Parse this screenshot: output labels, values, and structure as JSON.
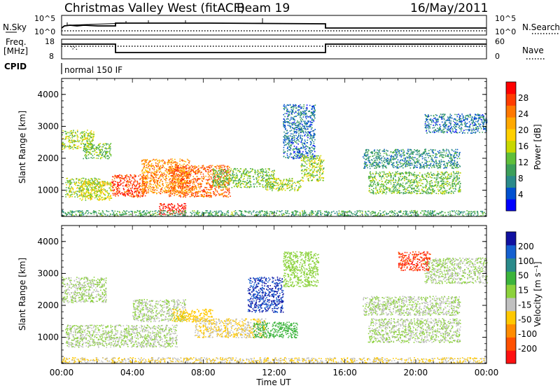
{
  "header": {
    "radar": "Christmas Valley West (fitACF)",
    "beam": "Beam 19",
    "date": "16/May/2011"
  },
  "status_panels": {
    "nsky_label": "N.Sky",
    "nsky_ticks": [
      "10^5",
      "10^0"
    ],
    "nsearch_label": "N.Search",
    "nsearch_ticks": [
      "10^5",
      "10^0"
    ],
    "freq_label_1": "Freq.",
    "freq_label_2": "[MHz]",
    "freq_ticks": [
      "18",
      "8"
    ],
    "nave_label": "Nave",
    "nave_ticks": [
      "60",
      "0"
    ],
    "cpid_label": "CPID",
    "cpid_value": "normal 150 IF"
  },
  "power_colorbar": {
    "label": "Power [dB]",
    "ticks": [
      "28",
      "24",
      "20",
      "16",
      "12",
      "8",
      "4"
    ],
    "colors": [
      "#0000ff",
      "#0050d0",
      "#2a8a8a",
      "#3c9f5a",
      "#5fbf3a",
      "#c8d800",
      "#ffd000",
      "#ffa800",
      "#ff7800",
      "#ff3c00",
      "#ff0000"
    ]
  },
  "velocity_colorbar": {
    "label": "Velocity [m s⁻¹]",
    "ticks": [
      "200",
      "100",
      "50",
      "15",
      "-15",
      "-50",
      "-100",
      "-200"
    ],
    "colors": [
      "#1010a0",
      "#1560d0",
      "#2a8a8a",
      "#3cb43c",
      "#8cd23c",
      "#c0c0c0",
      "#ffc800",
      "#ff8c00",
      "#ff5000",
      "#ff1010"
    ]
  },
  "x_axis": {
    "label": "Time UT",
    "ticks": [
      "00:00",
      "04:00",
      "08:00",
      "12:00",
      "16:00",
      "20:00",
      "00:00"
    ]
  },
  "chart_data": [
    {
      "type": "heatmap",
      "title": "Power",
      "ylabel": "Slant Range [km]",
      "xlabel": "Time UT",
      "xlim_hours": [
        0,
        24
      ],
      "ylim_km": [
        180,
        4500
      ],
      "y_ticks": [
        1000,
        2000,
        3000,
        4000
      ],
      "y_tick_labels": [
        "1000",
        "2000",
        "3000",
        "4000"
      ],
      "colorbar_range_db": [
        0,
        30
      ],
      "scatter_regions": [
        {
          "t": [
            0.0,
            1.8
          ],
          "r": [
            2300,
            2900
          ],
          "v": 14
        },
        {
          "t": [
            1.2,
            2.8
          ],
          "r": [
            2000,
            2500
          ],
          "v": 12
        },
        {
          "t": [
            0.2,
            2.2
          ],
          "r": [
            800,
            1400
          ],
          "v": 14
        },
        {
          "t": [
            1.0,
            2.8
          ],
          "r": [
            700,
            1300
          ],
          "v": 16
        },
        {
          "t": [
            2.8,
            4.8
          ],
          "r": [
            800,
            1500
          ],
          "v": 26
        },
        {
          "t": [
            4.5,
            7.2
          ],
          "r": [
            900,
            2000
          ],
          "v": 22
        },
        {
          "t": [
            6.0,
            9.5
          ],
          "r": [
            800,
            1800
          ],
          "v": 24
        },
        {
          "t": [
            5.5,
            7.0
          ],
          "r": [
            250,
            600
          ],
          "v": 28
        },
        {
          "t": [
            8.5,
            12.0
          ],
          "r": [
            1100,
            1700
          ],
          "v": 12
        },
        {
          "t": [
            11.5,
            13.5
          ],
          "r": [
            1000,
            1400
          ],
          "v": 14
        },
        {
          "t": [
            12.5,
            14.3
          ],
          "r": [
            2000,
            3700
          ],
          "v": 6
        },
        {
          "t": [
            13.5,
            14.8
          ],
          "r": [
            1300,
            2100
          ],
          "v": 14
        },
        {
          "t": [
            17.3,
            22.5
          ],
          "r": [
            900,
            1600
          ],
          "v": 12
        },
        {
          "t": [
            17.0,
            22.5
          ],
          "r": [
            1700,
            2300
          ],
          "v": 8
        },
        {
          "t": [
            20.5,
            24.0
          ],
          "r": [
            2800,
            3400
          ],
          "v": 6
        },
        {
          "t": [
            0.0,
            24.0
          ],
          "r": [
            200,
            380
          ],
          "v": 10
        }
      ]
    },
    {
      "type": "heatmap",
      "title": "Velocity",
      "ylabel": "Slant Range [km]",
      "xlabel": "Time UT",
      "xlim_hours": [
        0,
        24
      ],
      "ylim_km": [
        180,
        4500
      ],
      "y_ticks": [
        1000,
        2000,
        3000,
        4000
      ],
      "y_tick_labels": [
        "1000",
        "2000",
        "3000",
        "4000"
      ],
      "colorbar_range_ms": [
        -250,
        250
      ],
      "scatter_regions": [
        {
          "t": [
            0.0,
            2.5
          ],
          "r": [
            2100,
            2900
          ],
          "v": 0
        },
        {
          "t": [
            0.2,
            6.5
          ],
          "r": [
            700,
            1400
          ],
          "v": 0
        },
        {
          "t": [
            4.0,
            7.0
          ],
          "r": [
            1500,
            2200
          ],
          "v": 0
        },
        {
          "t": [
            6.2,
            8.5
          ],
          "r": [
            1500,
            1900
          ],
          "v": -80
        },
        {
          "t": [
            7.5,
            11.5
          ],
          "r": [
            1000,
            1600
          ],
          "v": -50
        },
        {
          "t": [
            10.8,
            13.3
          ],
          "r": [
            1000,
            1500
          ],
          "v": 60
        },
        {
          "t": [
            10.5,
            12.5
          ],
          "r": [
            1800,
            2900
          ],
          "v": 200
        },
        {
          "t": [
            12.5,
            14.5
          ],
          "r": [
            2600,
            3700
          ],
          "v": 40
        },
        {
          "t": [
            17.3,
            22.5
          ],
          "r": [
            850,
            1600
          ],
          "v": 0
        },
        {
          "t": [
            17.0,
            22.5
          ],
          "r": [
            1700,
            2300
          ],
          "v": 0
        },
        {
          "t": [
            20.5,
            24.0
          ],
          "r": [
            2700,
            3500
          ],
          "v": 0
        },
        {
          "t": [
            19.0,
            20.8
          ],
          "r": [
            3100,
            3700
          ],
          "v": -200
        },
        {
          "t": [
            0.0,
            24.0
          ],
          "r": [
            200,
            380
          ],
          "v": -50
        }
      ]
    }
  ]
}
